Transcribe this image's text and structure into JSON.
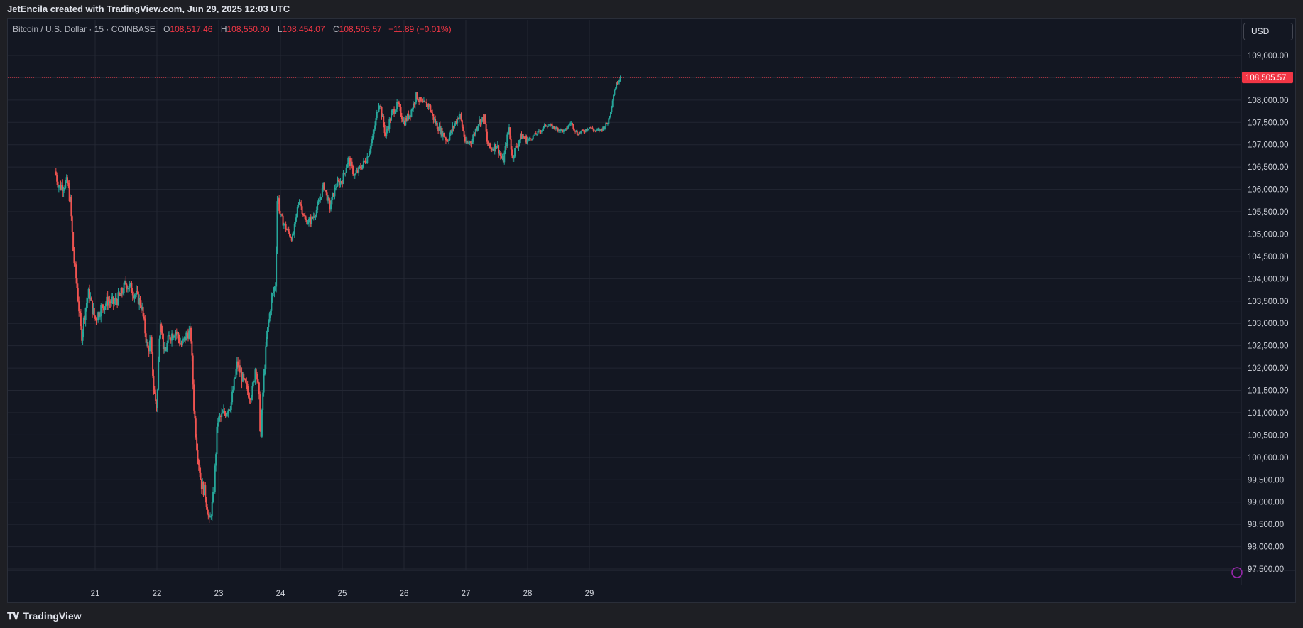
{
  "header": {
    "attribution": "JetEncila created with TradingView.com, Jun 29, 2025 12:03 UTC"
  },
  "legend": {
    "symbol": "Bitcoin / U.S. Dollar · 15 · COINBASE",
    "open_label": "O",
    "open_value": "108,517.46",
    "high_label": "H",
    "high_value": "108,550.00",
    "low_label": "L",
    "low_value": "108,454.07",
    "close_label": "C",
    "close_value": "108,505.57",
    "change": "−11.89 (−0.01%)"
  },
  "toolbar": {
    "currency": "USD"
  },
  "footer": {
    "brand": "TradingView"
  },
  "colors": {
    "up": "#26a69a",
    "down": "#ef5350",
    "background": "#131722",
    "grid": "#232733",
    "last_price": "#f23645"
  },
  "chart_data": {
    "type": "candlestick",
    "symbol": "BTC/USD",
    "interval": "15",
    "exchange": "COINBASE",
    "ylim": [
      97250,
      109500
    ],
    "y_ticks": [
      "109,000.00",
      "108,500.00",
      "108,000.00",
      "107,500.00",
      "107,000.00",
      "106,500.00",
      "106,000.00",
      "105,500.00",
      "105,000.00",
      "104,500.00",
      "104,000.00",
      "103,500.00",
      "103,000.00",
      "102,500.00",
      "102,000.00",
      "101,500.00",
      "101,000.00",
      "100,500.00",
      "100,000.00",
      "99,500.00",
      "99,000.00",
      "98,500.00",
      "98,000.00",
      "97,500.00"
    ],
    "x_ticks": [
      "21",
      "22",
      "23",
      "24",
      "25",
      "26",
      "27",
      "28",
      "29"
    ],
    "last_price": 108505.57,
    "last_price_label": "108,505.57",
    "price_path": [
      [
        20.35,
        106400
      ],
      [
        20.42,
        106050
      ],
      [
        20.55,
        106150
      ],
      [
        20.6,
        105700
      ],
      [
        20.65,
        104500
      ],
      [
        20.7,
        103900
      ],
      [
        20.78,
        102700
      ],
      [
        20.85,
        103400
      ],
      [
        20.9,
        103700
      ],
      [
        20.95,
        103350
      ],
      [
        21.0,
        103100
      ],
      [
        21.1,
        103350
      ],
      [
        21.2,
        103500
      ],
      [
        21.3,
        103450
      ],
      [
        21.4,
        103600
      ],
      [
        21.5,
        103900
      ],
      [
        21.6,
        103750
      ],
      [
        21.7,
        103550
      ],
      [
        21.75,
        103400
      ],
      [
        21.8,
        102900
      ],
      [
        21.85,
        102400
      ],
      [
        21.9,
        102600
      ],
      [
        21.95,
        101500
      ],
      [
        22.0,
        101100
      ],
      [
        22.05,
        103200
      ],
      [
        22.12,
        102300
      ],
      [
        22.2,
        102700
      ],
      [
        22.3,
        102850
      ],
      [
        22.4,
        102500
      ],
      [
        22.5,
        102800
      ],
      [
        22.55,
        102750
      ],
      [
        22.6,
        101100
      ],
      [
        22.65,
        100200
      ],
      [
        22.72,
        99400
      ],
      [
        22.78,
        99200
      ],
      [
        22.85,
        98500
      ],
      [
        22.92,
        99200
      ],
      [
        22.98,
        100800
      ],
      [
        23.1,
        101000
      ],
      [
        23.2,
        101200
      ],
      [
        23.3,
        102100
      ],
      [
        23.4,
        101700
      ],
      [
        23.5,
        101400
      ],
      [
        23.55,
        101500
      ],
      [
        23.6,
        102100
      ],
      [
        23.65,
        101400
      ],
      [
        23.68,
        100300
      ],
      [
        23.72,
        101600
      ],
      [
        23.78,
        102700
      ],
      [
        23.85,
        103500
      ],
      [
        23.92,
        103900
      ],
      [
        23.95,
        105900
      ],
      [
        24.0,
        105400
      ],
      [
        24.1,
        105100
      ],
      [
        24.2,
        104900
      ],
      [
        24.3,
        105800
      ],
      [
        24.4,
        105300
      ],
      [
        24.5,
        105300
      ],
      [
        24.6,
        105600
      ],
      [
        24.7,
        106100
      ],
      [
        24.8,
        105600
      ],
      [
        24.9,
        106100
      ],
      [
        25.0,
        106200
      ],
      [
        25.1,
        106700
      ],
      [
        25.2,
        106300
      ],
      [
        25.3,
        106500
      ],
      [
        25.4,
        106700
      ],
      [
        25.5,
        107200
      ],
      [
        25.55,
        107600
      ],
      [
        25.6,
        108000
      ],
      [
        25.7,
        107200
      ],
      [
        25.8,
        107700
      ],
      [
        25.9,
        107900
      ],
      [
        26.0,
        107500
      ],
      [
        26.1,
        107700
      ],
      [
        26.2,
        108100
      ],
      [
        26.3,
        107900
      ],
      [
        26.4,
        107900
      ],
      [
        26.5,
        107500
      ],
      [
        26.6,
        107300
      ],
      [
        26.7,
        107100
      ],
      [
        26.8,
        107400
      ],
      [
        26.9,
        107700
      ],
      [
        27.0,
        107000
      ],
      [
        27.1,
        107100
      ],
      [
        27.2,
        107500
      ],
      [
        27.3,
        107600
      ],
      [
        27.35,
        107000
      ],
      [
        27.4,
        106900
      ],
      [
        27.5,
        107000
      ],
      [
        27.6,
        106600
      ],
      [
        27.7,
        107400
      ],
      [
        27.75,
        106700
      ],
      [
        27.8,
        106900
      ],
      [
        27.9,
        107200
      ],
      [
        28.0,
        107100
      ],
      [
        28.1,
        107200
      ],
      [
        28.2,
        107300
      ],
      [
        28.3,
        107450
      ],
      [
        28.4,
        107400
      ],
      [
        28.5,
        107350
      ],
      [
        28.6,
        107300
      ],
      [
        28.7,
        107500
      ],
      [
        28.8,
        107250
      ],
      [
        28.9,
        107300
      ],
      [
        29.0,
        107400
      ],
      [
        29.1,
        107300
      ],
      [
        29.2,
        107350
      ],
      [
        29.3,
        107500
      ],
      [
        29.35,
        107800
      ],
      [
        29.4,
        108200
      ],
      [
        29.45,
        108400
      ],
      [
        29.5,
        108505.57
      ]
    ],
    "grid": true
  }
}
